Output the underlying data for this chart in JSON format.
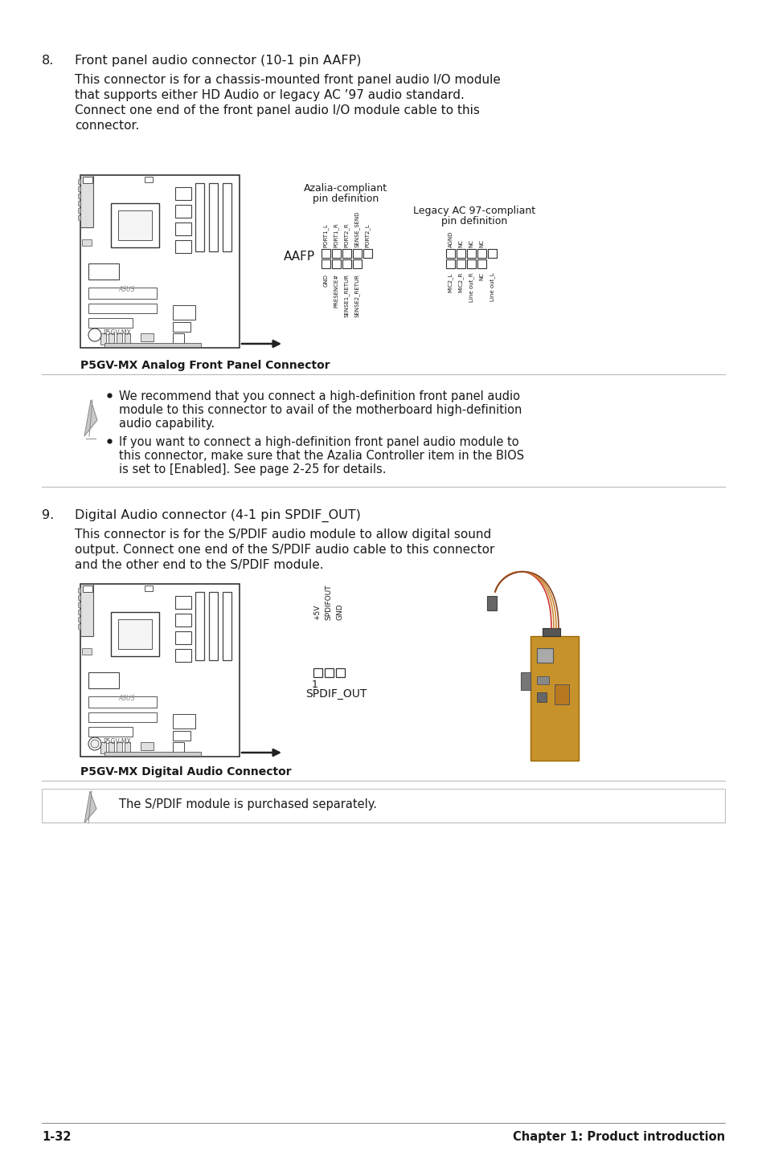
{
  "bg_color": "#ffffff",
  "text_color": "#1a1a1a",
  "page_number": "1-32",
  "chapter_title": "Chapter 1: Product introduction",
  "section8_number": "8.",
  "section8_title": "Front panel audio connector (10-1 pin AAFP)",
  "section8_body_lines": [
    "This connector is for a chassis-mounted front panel audio I/O module",
    "that supports either HD Audio or legacy AC ’97 audio standard.",
    "Connect one end of the front panel audio I/O module cable to this",
    "connector."
  ],
  "caption8": "P5GV-MX Analog Front Panel Connector",
  "note8_bullets": [
    [
      "We recommend that you connect a high-definition front panel audio",
      "module to this connector to avail of the motherboard high-definition",
      "audio capability."
    ],
    [
      "If you want to connect a high-definition front panel audio module to",
      "this connector, make sure that the Azalia Controller item in the BIOS",
      "is set to [Enabled]. See page 2-25 for details."
    ]
  ],
  "section9_number": "9.",
  "section9_title": "Digital Audio connector (4-1 pin SPDIF_OUT)",
  "section9_body_lines": [
    "This connector is for the S/PDIF audio module to allow digital sound",
    "output. Connect one end of the S/PDIF audio cable to this connector",
    "and the other end to the S/PDIF module."
  ],
  "caption9": "P5GV-MX Digital Audio Connector",
  "note9_text": "The S/PDIF module is purchased separately.",
  "azalia_label_lines": [
    "Azalia-compliant",
    "pin definition"
  ],
  "legacy_label_lines": [
    "Legacy AC 97-compliant",
    "pin definition"
  ],
  "aafp_label": "AAFP",
  "azalia_pins": [
    "PORT1_L",
    "GND",
    "PORT1_R",
    "PRESENCE#",
    "PORT2_R",
    "SENSE1_RETUR",
    "SENSE_SEND",
    "SENSE2_RETUR",
    "PORT2_L"
  ],
  "legacy_pins_top": [
    "AGND",
    "NC",
    "NC",
    "NC"
  ],
  "legacy_pins_bot": [
    "MIC2_L",
    "MIC2_R",
    "Line out_R",
    "NC",
    "Line out_L"
  ],
  "spdif_pins_labels": [
    "+5V",
    "SPDIFOUT",
    "GND"
  ],
  "spdif_out_label": "SPDIF_OUT",
  "connector_1_label": "1",
  "mb_edge_color": "#222222",
  "mb_face_color": "#ffffff",
  "divider_color": "#bbbbbb",
  "footer_line_color": "#555555"
}
